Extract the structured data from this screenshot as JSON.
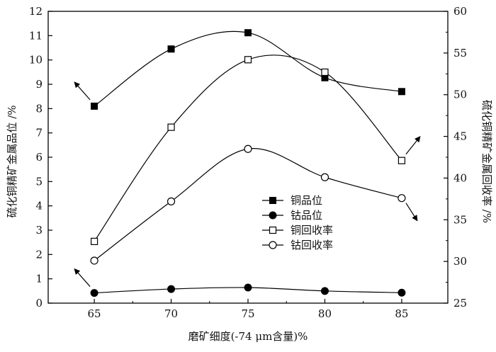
{
  "chart_data": {
    "type": "line",
    "xlabel": "磨矿细度(-74 μm含量)%",
    "ylabel_left": "硫化铜精矿金属品位 /%",
    "ylabel_right": "硫化铜精矿金属回收率 /%",
    "x": [
      65,
      70,
      75,
      80,
      85
    ],
    "xlim": [
      62,
      88
    ],
    "ylim_left": [
      0,
      12
    ],
    "ylim_right": [
      25,
      60
    ],
    "x_ticks": [
      65,
      70,
      75,
      80,
      85
    ],
    "y_ticks_left": [
      0,
      1,
      2,
      3,
      4,
      5,
      6,
      7,
      8,
      9,
      10,
      11,
      12
    ],
    "y_ticks_right": [
      25,
      30,
      35,
      40,
      45,
      50,
      55,
      60
    ],
    "grid": false,
    "legend_position": "center-right",
    "series": [
      {
        "name": "铜品位",
        "axis": "left",
        "marker": "filled-square",
        "values": [
          8.1,
          10.45,
          11.12,
          9.27,
          8.7
        ]
      },
      {
        "name": "钴品位",
        "axis": "left",
        "marker": "filled-circle",
        "values": [
          0.42,
          0.58,
          0.64,
          0.5,
          0.43
        ]
      },
      {
        "name": "铜回收率",
        "axis": "right",
        "marker": "open-square",
        "values": [
          32.4,
          46.1,
          54.2,
          52.7,
          42.1
        ]
      },
      {
        "name": "钴回收率",
        "axis": "right",
        "marker": "open-circle",
        "values": [
          30.1,
          37.2,
          43.5,
          40.1,
          37.6
        ]
      }
    ],
    "colors": {
      "line": "#000000",
      "background": "#ffffff"
    }
  }
}
